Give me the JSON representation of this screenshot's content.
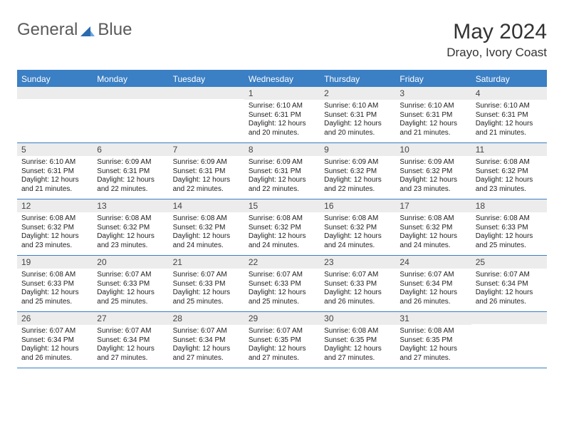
{
  "brand": {
    "part1": "General",
    "part2": "Blue",
    "logo_color": "#2a6bb0"
  },
  "title": "May 2024",
  "location": "Drayo, Ivory Coast",
  "colors": {
    "header_bg": "#3b7fc4",
    "header_text": "#ffffff",
    "daynum_bg": "#ececec",
    "border": "#3b7fc4",
    "text": "#222222"
  },
  "typography": {
    "body_pt": 10,
    "header_pt": 12,
    "title_pt": 30,
    "location_pt": 17
  },
  "day_names": [
    "Sunday",
    "Monday",
    "Tuesday",
    "Wednesday",
    "Thursday",
    "Friday",
    "Saturday"
  ],
  "weeks": [
    [
      {
        "day": "",
        "lines": []
      },
      {
        "day": "",
        "lines": []
      },
      {
        "day": "",
        "lines": []
      },
      {
        "day": "1",
        "lines": [
          "Sunrise: 6:10 AM",
          "Sunset: 6:31 PM",
          "Daylight: 12 hours and 20 minutes."
        ]
      },
      {
        "day": "2",
        "lines": [
          "Sunrise: 6:10 AM",
          "Sunset: 6:31 PM",
          "Daylight: 12 hours and 20 minutes."
        ]
      },
      {
        "day": "3",
        "lines": [
          "Sunrise: 6:10 AM",
          "Sunset: 6:31 PM",
          "Daylight: 12 hours and 21 minutes."
        ]
      },
      {
        "day": "4",
        "lines": [
          "Sunrise: 6:10 AM",
          "Sunset: 6:31 PM",
          "Daylight: 12 hours and 21 minutes."
        ]
      }
    ],
    [
      {
        "day": "5",
        "lines": [
          "Sunrise: 6:10 AM",
          "Sunset: 6:31 PM",
          "Daylight: 12 hours and 21 minutes."
        ]
      },
      {
        "day": "6",
        "lines": [
          "Sunrise: 6:09 AM",
          "Sunset: 6:31 PM",
          "Daylight: 12 hours and 22 minutes."
        ]
      },
      {
        "day": "7",
        "lines": [
          "Sunrise: 6:09 AM",
          "Sunset: 6:31 PM",
          "Daylight: 12 hours and 22 minutes."
        ]
      },
      {
        "day": "8",
        "lines": [
          "Sunrise: 6:09 AM",
          "Sunset: 6:31 PM",
          "Daylight: 12 hours and 22 minutes."
        ]
      },
      {
        "day": "9",
        "lines": [
          "Sunrise: 6:09 AM",
          "Sunset: 6:32 PM",
          "Daylight: 12 hours and 22 minutes."
        ]
      },
      {
        "day": "10",
        "lines": [
          "Sunrise: 6:09 AM",
          "Sunset: 6:32 PM",
          "Daylight: 12 hours and 23 minutes."
        ]
      },
      {
        "day": "11",
        "lines": [
          "Sunrise: 6:08 AM",
          "Sunset: 6:32 PM",
          "Daylight: 12 hours and 23 minutes."
        ]
      }
    ],
    [
      {
        "day": "12",
        "lines": [
          "Sunrise: 6:08 AM",
          "Sunset: 6:32 PM",
          "Daylight: 12 hours and 23 minutes."
        ]
      },
      {
        "day": "13",
        "lines": [
          "Sunrise: 6:08 AM",
          "Sunset: 6:32 PM",
          "Daylight: 12 hours and 23 minutes."
        ]
      },
      {
        "day": "14",
        "lines": [
          "Sunrise: 6:08 AM",
          "Sunset: 6:32 PM",
          "Daylight: 12 hours and 24 minutes."
        ]
      },
      {
        "day": "15",
        "lines": [
          "Sunrise: 6:08 AM",
          "Sunset: 6:32 PM",
          "Daylight: 12 hours and 24 minutes."
        ]
      },
      {
        "day": "16",
        "lines": [
          "Sunrise: 6:08 AM",
          "Sunset: 6:32 PM",
          "Daylight: 12 hours and 24 minutes."
        ]
      },
      {
        "day": "17",
        "lines": [
          "Sunrise: 6:08 AM",
          "Sunset: 6:32 PM",
          "Daylight: 12 hours and 24 minutes."
        ]
      },
      {
        "day": "18",
        "lines": [
          "Sunrise: 6:08 AM",
          "Sunset: 6:33 PM",
          "Daylight: 12 hours and 25 minutes."
        ]
      }
    ],
    [
      {
        "day": "19",
        "lines": [
          "Sunrise: 6:08 AM",
          "Sunset: 6:33 PM",
          "Daylight: 12 hours and 25 minutes."
        ]
      },
      {
        "day": "20",
        "lines": [
          "Sunrise: 6:07 AM",
          "Sunset: 6:33 PM",
          "Daylight: 12 hours and 25 minutes."
        ]
      },
      {
        "day": "21",
        "lines": [
          "Sunrise: 6:07 AM",
          "Sunset: 6:33 PM",
          "Daylight: 12 hours and 25 minutes."
        ]
      },
      {
        "day": "22",
        "lines": [
          "Sunrise: 6:07 AM",
          "Sunset: 6:33 PM",
          "Daylight: 12 hours and 25 minutes."
        ]
      },
      {
        "day": "23",
        "lines": [
          "Sunrise: 6:07 AM",
          "Sunset: 6:33 PM",
          "Daylight: 12 hours and 26 minutes."
        ]
      },
      {
        "day": "24",
        "lines": [
          "Sunrise: 6:07 AM",
          "Sunset: 6:34 PM",
          "Daylight: 12 hours and 26 minutes."
        ]
      },
      {
        "day": "25",
        "lines": [
          "Sunrise: 6:07 AM",
          "Sunset: 6:34 PM",
          "Daylight: 12 hours and 26 minutes."
        ]
      }
    ],
    [
      {
        "day": "26",
        "lines": [
          "Sunrise: 6:07 AM",
          "Sunset: 6:34 PM",
          "Daylight: 12 hours and 26 minutes."
        ]
      },
      {
        "day": "27",
        "lines": [
          "Sunrise: 6:07 AM",
          "Sunset: 6:34 PM",
          "Daylight: 12 hours and 27 minutes."
        ]
      },
      {
        "day": "28",
        "lines": [
          "Sunrise: 6:07 AM",
          "Sunset: 6:34 PM",
          "Daylight: 12 hours and 27 minutes."
        ]
      },
      {
        "day": "29",
        "lines": [
          "Sunrise: 6:07 AM",
          "Sunset: 6:35 PM",
          "Daylight: 12 hours and 27 minutes."
        ]
      },
      {
        "day": "30",
        "lines": [
          "Sunrise: 6:08 AM",
          "Sunset: 6:35 PM",
          "Daylight: 12 hours and 27 minutes."
        ]
      },
      {
        "day": "31",
        "lines": [
          "Sunrise: 6:08 AM",
          "Sunset: 6:35 PM",
          "Daylight: 12 hours and 27 minutes."
        ]
      },
      {
        "day": "",
        "lines": []
      }
    ]
  ]
}
